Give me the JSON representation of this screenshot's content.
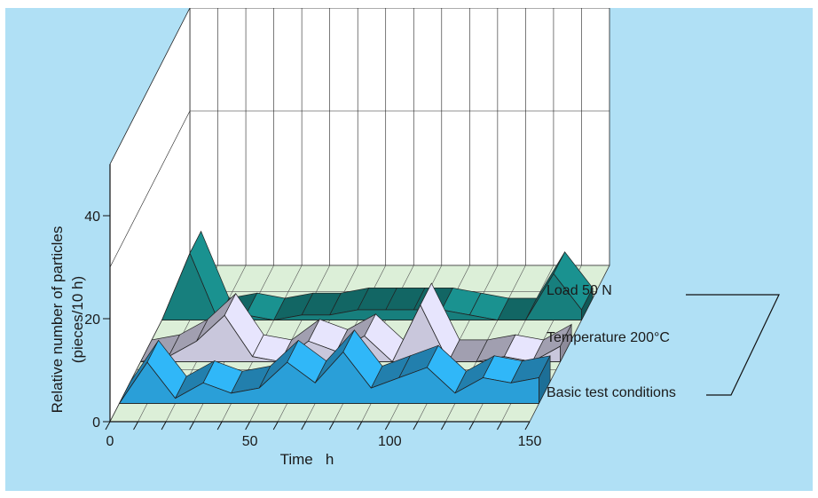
{
  "chart_data": {
    "type": "line",
    "style": "3d-ribbon",
    "title": "",
    "xlabel": "Time   h",
    "ylabel": "Relative number of particles",
    "ylabel_unit": "(pieces/10 h)",
    "x_ticks": [
      "0",
      "50",
      "100",
      "150"
    ],
    "y_ticks": [
      "0",
      "20",
      "40"
    ],
    "xlim": [
      0,
      150
    ],
    "ylim": [
      0,
      50
    ],
    "grid": true,
    "x": [
      0,
      10,
      20,
      30,
      40,
      50,
      60,
      70,
      80,
      90,
      100,
      110,
      120,
      130,
      140,
      150
    ],
    "series": [
      {
        "name": "Basic test conditions",
        "color": "#2a9fd8",
        "values": [
          0,
          8,
          1,
          4,
          2,
          3,
          8,
          4,
          10,
          3,
          5,
          7,
          2,
          5,
          4,
          5
        ]
      },
      {
        "name": "Temperature 200°C",
        "color": "#c9c7dc",
        "values": [
          0,
          1,
          4,
          9,
          1,
          0,
          4,
          2,
          5,
          0,
          11,
          0,
          0,
          1,
          0,
          3
        ]
      },
      {
        "name": "Load 50 N",
        "color": "#177f7d",
        "values": [
          0,
          13,
          0,
          1,
          0,
          1,
          1,
          2,
          2,
          2,
          2,
          1,
          0,
          0,
          9,
          2
        ]
      }
    ]
  }
}
